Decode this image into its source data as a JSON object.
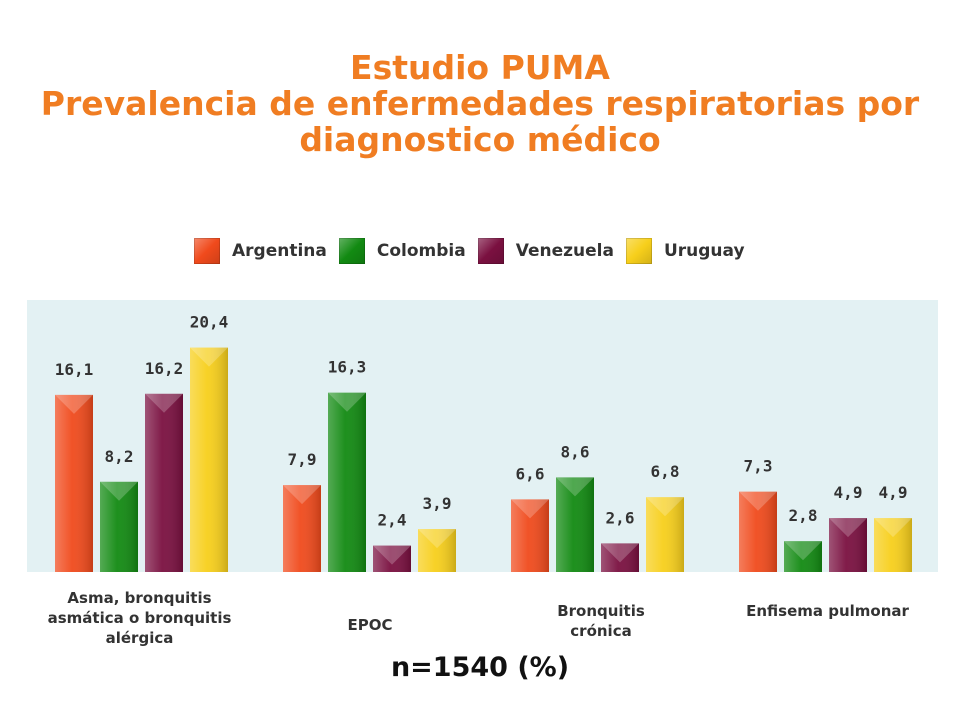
{
  "title": {
    "line1": "Estudio PUMA",
    "line2": "Prevalencia de enfermedades respiratorias por",
    "line3": "diagnostico médico"
  },
  "footnote": "n=1540 (%)",
  "colors": {
    "Argentina": "#f04a1c",
    "Colombia": "#128a12",
    "Venezuela": "#7a1040",
    "Uruguay": "#f7cf1b",
    "panel": "#e3f1f3",
    "title": "#f07d22"
  },
  "chart_data": {
    "type": "bar",
    "categories": [
      "Asma, bronquitis asmática o bronquitis alérgica",
      "EPOC",
      "Bronquitis crónica",
      "Enfisema pulmonar"
    ],
    "series": [
      {
        "name": "Argentina",
        "values": [
          16.1,
          7.9,
          6.6,
          7.3
        ],
        "labels": [
          "16,1",
          "7,9",
          "6,6",
          "7,3"
        ]
      },
      {
        "name": "Colombia",
        "values": [
          8.2,
          16.3,
          8.6,
          2.8
        ],
        "labels": [
          "8,2",
          "16,3",
          "8,6",
          "2,8"
        ]
      },
      {
        "name": "Venezuela",
        "values": [
          16.2,
          2.4,
          2.6,
          4.9
        ],
        "labels": [
          "16,2",
          "2,4",
          "2,6",
          "4,9"
        ]
      },
      {
        "name": "Uruguay",
        "values": [
          20.4,
          3.9,
          6.8,
          4.9
        ],
        "labels": [
          "20,4",
          "3,9",
          "6,8",
          "4,9"
        ]
      }
    ],
    "legend_position": "top-center",
    "grid": false
  }
}
